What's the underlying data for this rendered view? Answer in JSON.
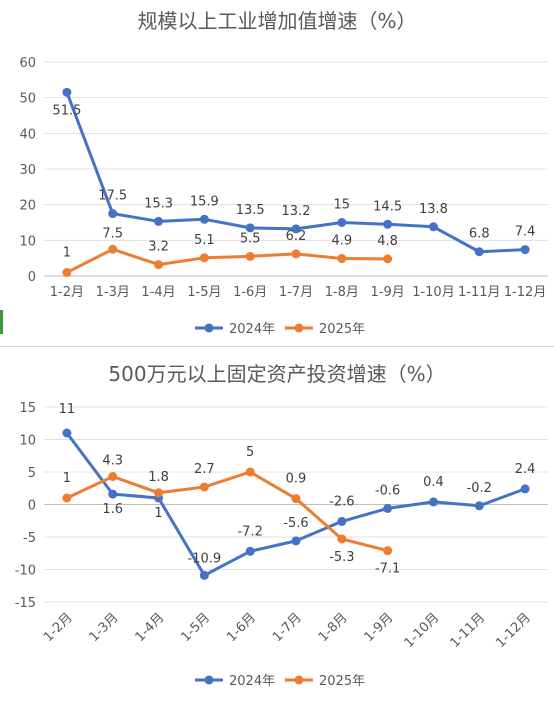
{
  "chart_data": [
    {
      "type": "line",
      "title": "规模以上工业增加值增速（%）",
      "categories": [
        "1-2月",
        "1-3月",
        "1-4月",
        "1-5月",
        "1-6月",
        "1-7月",
        "1-8月",
        "1-9月",
        "1-10月",
        "1-11月",
        "1-12月"
      ],
      "series": [
        {
          "name": "2024年",
          "color": "#4472c4",
          "values": [
            51.5,
            17.5,
            15.3,
            15.9,
            13.5,
            13.2,
            15,
            14.5,
            13.8,
            6.8,
            7.4
          ]
        },
        {
          "name": "2025年",
          "color": "#ed7d31",
          "values": [
            1,
            7.5,
            3.2,
            5.1,
            5.5,
            6.2,
            4.9,
            4.8,
            null,
            null,
            null
          ]
        }
      ],
      "ylim": [
        0,
        60
      ],
      "yticks": [
        0,
        10,
        20,
        30,
        40,
        50,
        60
      ],
      "grid": true,
      "legend": "bottom",
      "xlabel": "",
      "ylabel": ""
    },
    {
      "type": "line",
      "title": "500万元以上固定资产投资增速（%）",
      "categories": [
        "1-2月",
        "1-3月",
        "1-4月",
        "1-5月",
        "1-6月",
        "1-7月",
        "1-8月",
        "1-9月",
        "1-10月",
        "1-11月",
        "1-12月"
      ],
      "series": [
        {
          "name": "2024年",
          "color": "#4472c4",
          "values": [
            11,
            1.6,
            1,
            -10.9,
            -7.2,
            -5.6,
            -2.6,
            -0.6,
            0.4,
            -0.2,
            2.4
          ]
        },
        {
          "name": "2025年",
          "color": "#ed7d31",
          "values": [
            1,
            4.3,
            1.8,
            2.7,
            5,
            0.9,
            -5.3,
            -7.1,
            null,
            null,
            null
          ]
        }
      ],
      "ylim": [
        -15,
        15
      ],
      "yticks": [
        -15,
        -10,
        -5,
        0,
        5,
        10,
        15
      ],
      "grid": true,
      "legend": "bottom",
      "xlabel": "",
      "ylabel": ""
    }
  ]
}
